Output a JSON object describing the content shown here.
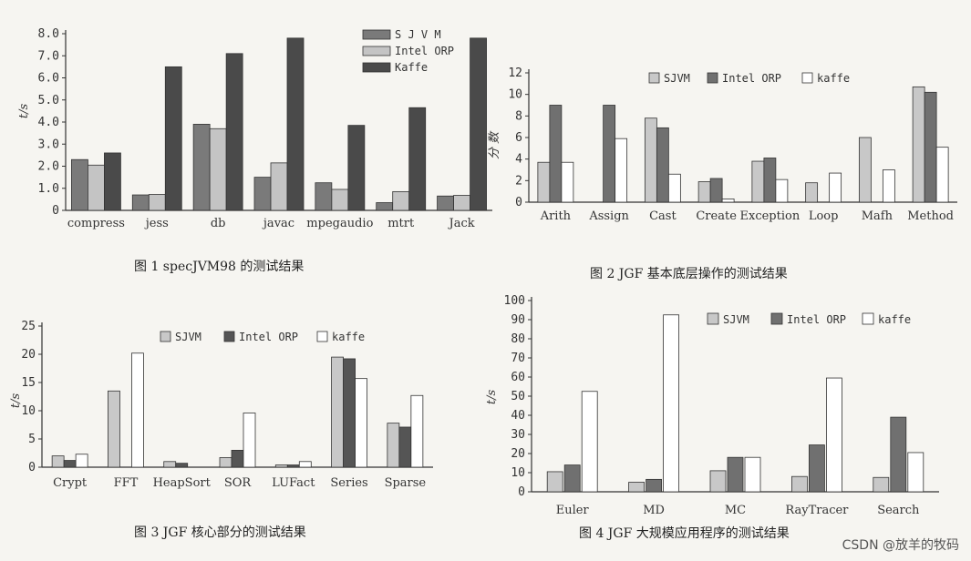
{
  "chart_data": [
    {
      "type": "bar",
      "title": "图 1   specJVM98 的测试结果",
      "ylabel": "t/s",
      "yticks": [
        "0",
        "1.0",
        "2.0",
        "3.0",
        "4.0",
        "5.0",
        "6.0",
        "7.0",
        "8.0"
      ],
      "ylim": [
        0,
        8
      ],
      "categories": [
        "compress",
        "jess",
        "db",
        "javac",
        "mpegaudio",
        "mtrt",
        "Jack"
      ],
      "series": [
        {
          "name": "S J V M",
          "color": "#7a7a7a",
          "values": [
            2.3,
            0.7,
            3.9,
            1.5,
            1.25,
            0.35,
            0.65
          ]
        },
        {
          "name": "Intel ORP",
          "color": "#c4c4c4",
          "values": [
            2.05,
            0.72,
            3.7,
            2.15,
            0.95,
            0.85,
            0.68
          ]
        },
        {
          "name": "Kaffe",
          "color": "#4a4a4a",
          "values": [
            2.6,
            6.5,
            7.1,
            7.8,
            3.85,
            4.65,
            7.8
          ]
        }
      ],
      "legend": "top-right"
    },
    {
      "type": "bar",
      "title": "图 2   JGF 基本底层操作的测试结果",
      "ylabel": "分 数",
      "yticks": [
        "0",
        "2",
        "4",
        "6",
        "8",
        "10",
        "12"
      ],
      "ylim": [
        0,
        12
      ],
      "categories": [
        "Arith",
        "Assign",
        "Cast",
        "Create",
        "Exception",
        "Loop",
        "Math",
        "Method"
      ],
      "category_labels": [
        "Arith",
        "Assign",
        "Cast",
        "Create",
        "Exception",
        "Loop",
        "Mafh",
        "Method"
      ],
      "series": [
        {
          "name": "SJVM",
          "color": "#c8c8c8",
          "values": [
            3.7,
            0,
            7.8,
            1.9,
            3.8,
            1.8,
            6.0,
            10.7
          ]
        },
        {
          "name": "Intel ORP",
          "color": "#707070",
          "values": [
            9.0,
            9.0,
            6.9,
            2.2,
            4.1,
            0,
            0,
            10.2
          ]
        },
        {
          "name": "kaffe",
          "color": "#ffffff",
          "values": [
            3.7,
            5.9,
            2.6,
            0.3,
            2.1,
            2.7,
            3.0,
            5.1
          ]
        }
      ],
      "legend": "top"
    },
    {
      "type": "bar",
      "title": "图 3   JGF 核心部分的测试结果",
      "ylabel": "t/s",
      "yticks": [
        "0",
        "5",
        "10",
        "15",
        "20",
        "25"
      ],
      "ylim": [
        0,
        25
      ],
      "categories": [
        "Crypt",
        "FFT",
        "HeapSort",
        "SOR",
        "LUFact",
        "Series",
        "Sparse"
      ],
      "category_labels": [
        "Crypt",
        "FFT",
        "HeapSort",
        "SOR",
        "LUFact",
        "Series",
        "Sparse"
      ],
      "series": [
        {
          "name": "SJVM",
          "color": "#c8c8c8",
          "values": [
            2.0,
            13.5,
            1.0,
            1.7,
            0.4,
            19.5,
            7.8
          ]
        },
        {
          "name": "Intel ORP",
          "color": "#555555",
          "values": [
            1.2,
            0,
            0.7,
            3.0,
            0.4,
            19.2,
            7.1
          ]
        },
        {
          "name": "kaffe",
          "color": "#ffffff",
          "values": [
            2.3,
            20.2,
            0,
            9.6,
            1.0,
            15.7,
            12.7
          ]
        }
      ],
      "legend": "top"
    },
    {
      "type": "bar",
      "title": "图 4   JGF 大规模应用程序的测试结果",
      "ylabel": "t/s",
      "yticks": [
        "0",
        "10",
        "20",
        "30",
        "40",
        "50",
        "60",
        "70",
        "80",
        "90",
        "100"
      ],
      "ylim": [
        0,
        100
      ],
      "categories": [
        "Euler",
        "MD",
        "MC",
        "RayTracer",
        "Search"
      ],
      "category_labels": [
        "Euler",
        "MD",
        "MC",
        "RayTracer",
        "Search"
      ],
      "series": [
        {
          "name": "SJVM",
          "color": "#c8c8c8",
          "values": [
            10.5,
            5.0,
            11.0,
            8.0,
            7.5
          ]
        },
        {
          "name": "Intel ORP",
          "color": "#707070",
          "values": [
            14.0,
            6.5,
            18.0,
            24.5,
            39.0
          ]
        },
        {
          "name": "kaffe",
          "color": "#ffffff",
          "values": [
            52.5,
            92.5,
            18.0,
            59.5,
            20.5
          ]
        }
      ],
      "legend": "top"
    }
  ],
  "watermark": "CSDN @放羊的牧码"
}
